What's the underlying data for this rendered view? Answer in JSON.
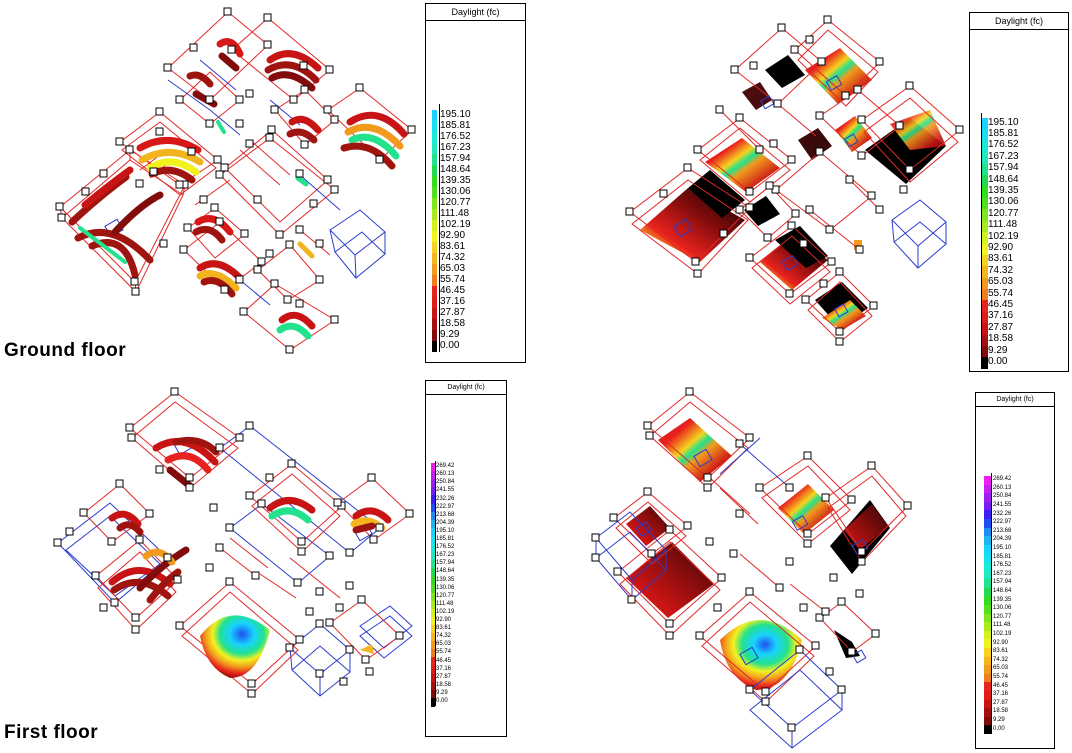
{
  "labels": {
    "ground_floor": "Ground floor",
    "first_floor": "First floor"
  },
  "legends": [
    {
      "title": "Daylight (fc)",
      "values": [
        "195.10",
        "185.81",
        "176.52",
        "167.23",
        "157.94",
        "148.64",
        "139.35",
        "130.06",
        "120.77",
        "111.48",
        "102.19",
        "92.90",
        "83.61",
        "74.32",
        "65.03",
        "55.74",
        "46.45",
        "37.16",
        "27.87",
        "18.58",
        "9.29",
        "0.00"
      ],
      "colors": [
        "#19d2ff",
        "#19e0ee",
        "#19ead8",
        "#22e8bf",
        "#22e28e",
        "#20da55",
        "#32dc1e",
        "#52e01e",
        "#80e61e",
        "#a8ec1e",
        "#d2f21e",
        "#f2f21e",
        "#f6d21e",
        "#f6b41e",
        "#f29a1e",
        "#ee7e1e",
        "#e8221e",
        "#de1c18",
        "#c81414",
        "#a41010",
        "#820c0c",
        "#000000"
      ]
    },
    {
      "title": "Daylight (fc)",
      "values": [
        "195.10",
        "185.81",
        "176.52",
        "167.23",
        "157.94",
        "148.64",
        "139.35",
        "130.06",
        "120.77",
        "111.48",
        "102.19",
        "92.90",
        "83.61",
        "74.32",
        "65.03",
        "55.74",
        "46.45",
        "37.16",
        "27.87",
        "18.58",
        "9.29",
        "0.00"
      ],
      "colors": [
        "#19d2ff",
        "#19e0ee",
        "#19ead8",
        "#22e8bf",
        "#22e28e",
        "#20da55",
        "#32dc1e",
        "#52e01e",
        "#80e61e",
        "#a8ec1e",
        "#d2f21e",
        "#f2f21e",
        "#f6d21e",
        "#f6b41e",
        "#f29a1e",
        "#ee7e1e",
        "#e8221e",
        "#de1c18",
        "#c81414",
        "#a41010",
        "#820c0c",
        "#000000"
      ]
    },
    {
      "title": "Daylight (fc)",
      "values": [
        "269.42",
        "260.13",
        "250.84",
        "241.55",
        "232.26",
        "222.97",
        "213.68",
        "204.39",
        "195.10",
        "185.81",
        "176.52",
        "167.23",
        "157.94",
        "148.64",
        "139.35",
        "130.06",
        "120.77",
        "111.48",
        "102.19",
        "92.90",
        "83.61",
        "74.32",
        "65.03",
        "55.74",
        "46.45",
        "37.16",
        "27.87",
        "18.58",
        "9.29",
        "0.00"
      ],
      "colors": [
        "#f01ef0",
        "#c81ef0",
        "#a01ef0",
        "#781ef0",
        "#3c1ef0",
        "#1e50f0",
        "#1e8cf0",
        "#1eb4f0",
        "#19d2ff",
        "#19e0ee",
        "#19ead8",
        "#22e8bf",
        "#22e28e",
        "#20da55",
        "#32dc1e",
        "#52e01e",
        "#80e61e",
        "#a8ec1e",
        "#d2f21e",
        "#f2f21e",
        "#f6d21e",
        "#f6b41e",
        "#f29a1e",
        "#ee7e1e",
        "#e8221e",
        "#de1c18",
        "#c81414",
        "#a41010",
        "#820c0c",
        "#000000"
      ]
    },
    {
      "title": "Daylight (fc)",
      "values": [
        "269.42",
        "260.13",
        "250.84",
        "241.55",
        "232.26",
        "222.97",
        "213.68",
        "204.39",
        "195.10",
        "185.81",
        "176.52",
        "167.23",
        "157.94",
        "148.64",
        "139.35",
        "130.06",
        "120.77",
        "111.48",
        "102.19",
        "92.90",
        "83.61",
        "74.32",
        "65.03",
        "55.74",
        "46.45",
        "37.16",
        "27.87",
        "18.58",
        "9.29",
        "0.00"
      ],
      "colors": [
        "#f01ef0",
        "#c81ef0",
        "#a01ef0",
        "#781ef0",
        "#3c1ef0",
        "#1e50f0",
        "#1e8cf0",
        "#1eb4f0",
        "#19d2ff",
        "#19e0ee",
        "#19ead8",
        "#22e8bf",
        "#22e28e",
        "#20da55",
        "#32dc1e",
        "#52e01e",
        "#80e61e",
        "#a8ec1e",
        "#d2f21e",
        "#f2f21e",
        "#f6d21e",
        "#f6b41e",
        "#f29a1e",
        "#ee7e1e",
        "#e8221e",
        "#de1c18",
        "#c81414",
        "#a41010",
        "#820c0c",
        "#000000"
      ]
    }
  ]
}
